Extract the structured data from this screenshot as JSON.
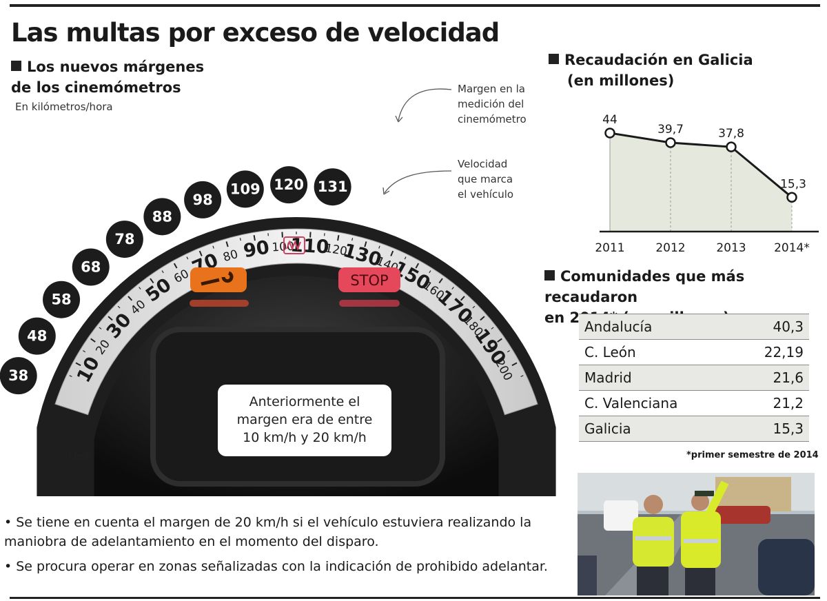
{
  "title": "Las multas por exceso de velocidad",
  "margins_section": {
    "title_line1": "Los nuevos márgenes",
    "title_line2": "de los cinemómetros",
    "unit": "En kilómetros/hora",
    "annotation_margin": [
      "Margen en la",
      "medición del",
      "cinemómetro"
    ],
    "annotation_speed": [
      "Velocidad",
      "que marca",
      "el vehículo"
    ],
    "overlay_text": [
      "Anteriormente el",
      "margen era de entre",
      "10 km/h y 20 km/h"
    ],
    "dial_unit": "km/h",
    "dashboard_stop": "STOP"
  },
  "speedometer": {
    "marked_speeds": [
      10,
      20,
      30,
      40,
      50,
      60,
      70,
      80,
      90,
      100,
      110,
      120,
      130,
      140,
      150,
      160,
      170,
      180,
      190,
      200
    ],
    "measured_margin": [
      38,
      48,
      58,
      68,
      78,
      88,
      98,
      109,
      120,
      131
    ]
  },
  "revenue_section": {
    "title_line1": "Recaudación en Galicia",
    "title_line2": "(en millones)"
  },
  "chart_data": {
    "type": "line",
    "title": "Recaudación en Galicia (en millones)",
    "x": [
      "2011",
      "2012",
      "2013",
      "2014*"
    ],
    "values": [
      44,
      39.7,
      37.8,
      15.3
    ],
    "labels": [
      "44",
      "39,7",
      "37,8",
      "15,3"
    ],
    "ylim": [
      0,
      48
    ],
    "grid": "vertical-dashed",
    "colors": {
      "line": "#1a1a1a",
      "fill": "#e5e8dc"
    }
  },
  "communities_section": {
    "title_line1": "Comunidades que más recaudaron",
    "title_line2": "en 2014* (en millones)",
    "rows": [
      {
        "name": "Andalucía",
        "value": "40,3"
      },
      {
        "name": "C. León",
        "value": "22,19"
      },
      {
        "name": "Madrid",
        "value": "21,6"
      },
      {
        "name": "C. Valenciana",
        "value": "21,2"
      },
      {
        "name": "Galicia",
        "value": "15,3"
      }
    ],
    "footnote": "*primer semestre de 2014"
  },
  "bullets": [
    "• Se tiene en cuenta el margen de 20 km/h si el vehículo estuviera realizando la maniobra de adelantamiento en el momento del disparo.",
    "• Se procura operar en zonas señalizadas con la indicación de prohibido adelantar."
  ]
}
